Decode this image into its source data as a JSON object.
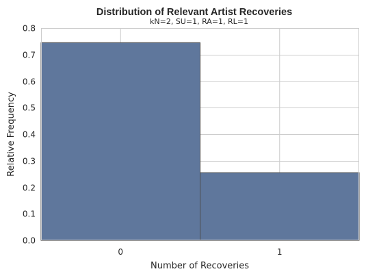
{
  "chart_data": {
    "type": "bar",
    "title": "Distribution of Relevant Artist Recoveries",
    "subtitle": "kN=2, SU=1, RA=1, RL=1",
    "xlabel": "Number of Recoveries",
    "ylabel": "Relative Frequency",
    "categories": [
      "0",
      "1"
    ],
    "values": [
      0.745,
      0.255
    ],
    "ylim": [
      0,
      0.8
    ],
    "yticks": [
      "0.0",
      "0.1",
      "0.2",
      "0.3",
      "0.4",
      "0.5",
      "0.6",
      "0.7",
      "0.8"
    ],
    "grid": true,
    "bar_color": "#5f779c",
    "edge_color": "#4a4a4a",
    "grid_color": "#cccccc"
  }
}
